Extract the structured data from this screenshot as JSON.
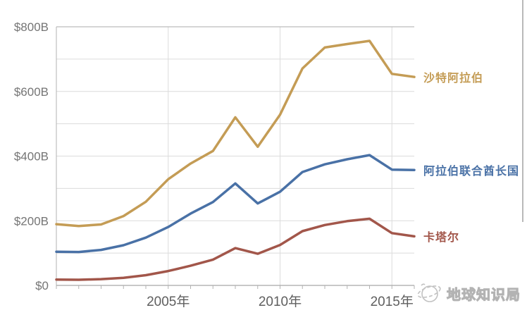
{
  "chart_data": {
    "type": "line",
    "title": "",
    "x": [
      2000,
      2001,
      2002,
      2003,
      2004,
      2005,
      2006,
      2007,
      2008,
      2009,
      2010,
      2011,
      2012,
      2013,
      2014,
      2015,
      2016
    ],
    "x_axis": {
      "range": [
        2000,
        2016
      ],
      "gridline_years": [
        2005,
        2010,
        2015
      ],
      "tick_labels": [
        {
          "year": 2005,
          "label": "2005年"
        },
        {
          "year": 2010,
          "label": "2010年"
        },
        {
          "year": 2015,
          "label": "2015年"
        }
      ],
      "minor_tick_every_years": 1
    },
    "y_axis": {
      "range": [
        0,
        800
      ],
      "gridlines": [
        100,
        200,
        300,
        400,
        500,
        600,
        700
      ],
      "tick_labels": [
        {
          "value": 0,
          "label": "$0"
        },
        {
          "value": 200,
          "label": "$200B"
        },
        {
          "value": 400,
          "label": "$400B"
        },
        {
          "value": 600,
          "label": "$600B"
        },
        {
          "value": 800,
          "label": "$800B"
        }
      ]
    },
    "grid": true,
    "legend_position": "right-of-line-end",
    "series": [
      {
        "id": "saudi-arabia",
        "name": "沙特阿拉伯",
        "color": "#C49C55",
        "values": [
          189.5,
          183.8,
          188.6,
          214.6,
          258.7,
          328.5,
          376.9,
          415.9,
          519.8,
          429.1,
          528.2,
          671.2,
          735.9,
          746.6,
          756.4,
          654.3,
          644.9
        ]
      },
      {
        "id": "united-arab-emirates",
        "name": "阿拉伯联合酋长国",
        "color": "#4971A6",
        "values": [
          104.3,
          103.3,
          109.8,
          124.3,
          147.8,
          180.6,
          222.1,
          257.9,
          315.5,
          253.5,
          289.8,
          350.7,
          374.6,
          390.1,
          403.1,
          358.1,
          357.0
        ]
      },
      {
        "id": "qatar",
        "name": "卡塔尔",
        "color": "#A2564A",
        "values": [
          17.8,
          17.5,
          19.4,
          23.5,
          31.7,
          44.5,
          60.9,
          79.7,
          115.3,
          97.8,
          125.1,
          167.8,
          186.8,
          198.7,
          206.2,
          161.7,
          151.7
        ]
      }
    ],
    "style_colors": {
      "gridline": "#dcdcdc",
      "plot_border_top": "#ababab",
      "axis_line": "#a6a6a6",
      "left_axis_line": "#b3b3b3",
      "tick": "#b3b3b3",
      "y_label_text": "#757575",
      "x_label_text": "#5f5f5f"
    }
  },
  "watermark": {
    "text": "地球知识局",
    "icon": "ringed-planet-icon",
    "color": "#bdbdbd"
  }
}
